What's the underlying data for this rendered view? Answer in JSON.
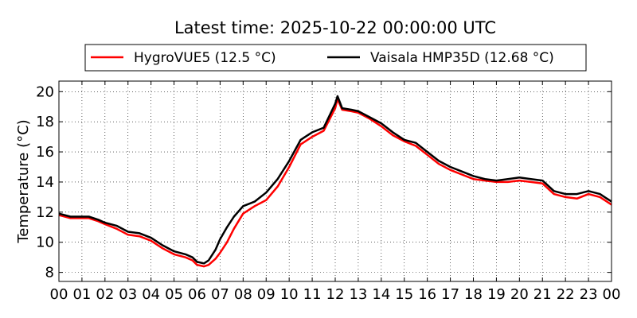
{
  "chart_data": {
    "type": "line",
    "title": "Latest time: 2025-10-22 00:00:00 UTC",
    "xlabel": "",
    "ylabel": "Temperature (°C)",
    "xlim": [
      0,
      24
    ],
    "ylim": [
      7.4,
      20.7
    ],
    "x_ticks": [
      0,
      1,
      2,
      3,
      4,
      5,
      6,
      7,
      8,
      9,
      10,
      11,
      12,
      13,
      14,
      15,
      16,
      17,
      18,
      19,
      20,
      21,
      22,
      23,
      24
    ],
    "x_tick_labels": [
      "00",
      "01",
      "02",
      "03",
      "04",
      "05",
      "06",
      "07",
      "08",
      "09",
      "10",
      "11",
      "12",
      "13",
      "14",
      "15",
      "16",
      "17",
      "18",
      "19",
      "20",
      "21",
      "22",
      "23",
      "00"
    ],
    "y_ticks": [
      8,
      10,
      12,
      14,
      16,
      18,
      20
    ],
    "y_tick_labels": [
      "8",
      "10",
      "12",
      "14",
      "16",
      "18",
      "20"
    ],
    "grid": true,
    "legend_position": "top-center, above plot",
    "series": [
      {
        "name": "HygroVUE5 (12.5 °C)",
        "color": "#ff0000",
        "x": [
          0,
          0.5,
          1,
          1.3,
          1.7,
          2,
          2.5,
          3,
          3.5,
          4,
          4.5,
          5,
          5.5,
          5.8,
          6,
          6.3,
          6.5,
          6.8,
          7,
          7.3,
          7.6,
          8,
          8.5,
          9,
          9.5,
          10,
          10.5,
          11,
          11.5,
          12,
          12.1,
          12.3,
          12.7,
          13,
          13.5,
          14,
          14.5,
          15,
          15.5,
          16,
          16.5,
          17,
          17.5,
          18,
          18.5,
          19,
          19.5,
          20,
          20.5,
          21,
          21.5,
          22,
          22.5,
          23,
          23.5,
          24
        ],
        "y": [
          11.8,
          11.6,
          11.6,
          11.6,
          11.4,
          11.2,
          10.9,
          10.5,
          10.4,
          10.1,
          9.6,
          9.2,
          9.0,
          8.8,
          8.5,
          8.4,
          8.5,
          8.9,
          9.3,
          10.0,
          10.9,
          11.9,
          12.4,
          12.8,
          13.7,
          15.0,
          16.5,
          17.0,
          17.4,
          18.9,
          19.5,
          18.8,
          18.7,
          18.6,
          18.2,
          17.7,
          17.1,
          16.7,
          16.4,
          15.8,
          15.2,
          14.8,
          14.5,
          14.2,
          14.1,
          14.0,
          14.0,
          14.1,
          14.0,
          13.9,
          13.2,
          13.0,
          12.9,
          13.2,
          13.0,
          12.5
        ]
      },
      {
        "name": "Vaisala HMP35D (12.68 °C)",
        "color": "#000000",
        "x": [
          0,
          0.5,
          1,
          1.3,
          1.7,
          2,
          2.5,
          3,
          3.5,
          4,
          4.5,
          5,
          5.5,
          5.8,
          6,
          6.3,
          6.5,
          6.8,
          7,
          7.3,
          7.6,
          8,
          8.5,
          9,
          9.5,
          10,
          10.5,
          11,
          11.5,
          12,
          12.1,
          12.3,
          12.7,
          13,
          13.5,
          14,
          14.5,
          15,
          15.5,
          16,
          16.5,
          17,
          17.5,
          18,
          18.5,
          19,
          19.5,
          20,
          20.5,
          21,
          21.5,
          22,
          22.5,
          23,
          23.5,
          24
        ],
        "y": [
          11.9,
          11.7,
          11.7,
          11.7,
          11.5,
          11.3,
          11.1,
          10.7,
          10.6,
          10.3,
          9.8,
          9.4,
          9.2,
          9.0,
          8.7,
          8.6,
          8.8,
          9.5,
          10.2,
          11.0,
          11.7,
          12.4,
          12.7,
          13.3,
          14.2,
          15.4,
          16.8,
          17.3,
          17.6,
          19.2,
          19.7,
          18.9,
          18.8,
          18.7,
          18.3,
          17.9,
          17.3,
          16.8,
          16.6,
          16.0,
          15.4,
          15.0,
          14.7,
          14.4,
          14.2,
          14.1,
          14.2,
          14.3,
          14.2,
          14.1,
          13.4,
          13.2,
          13.2,
          13.4,
          13.2,
          12.7
        ]
      }
    ]
  }
}
